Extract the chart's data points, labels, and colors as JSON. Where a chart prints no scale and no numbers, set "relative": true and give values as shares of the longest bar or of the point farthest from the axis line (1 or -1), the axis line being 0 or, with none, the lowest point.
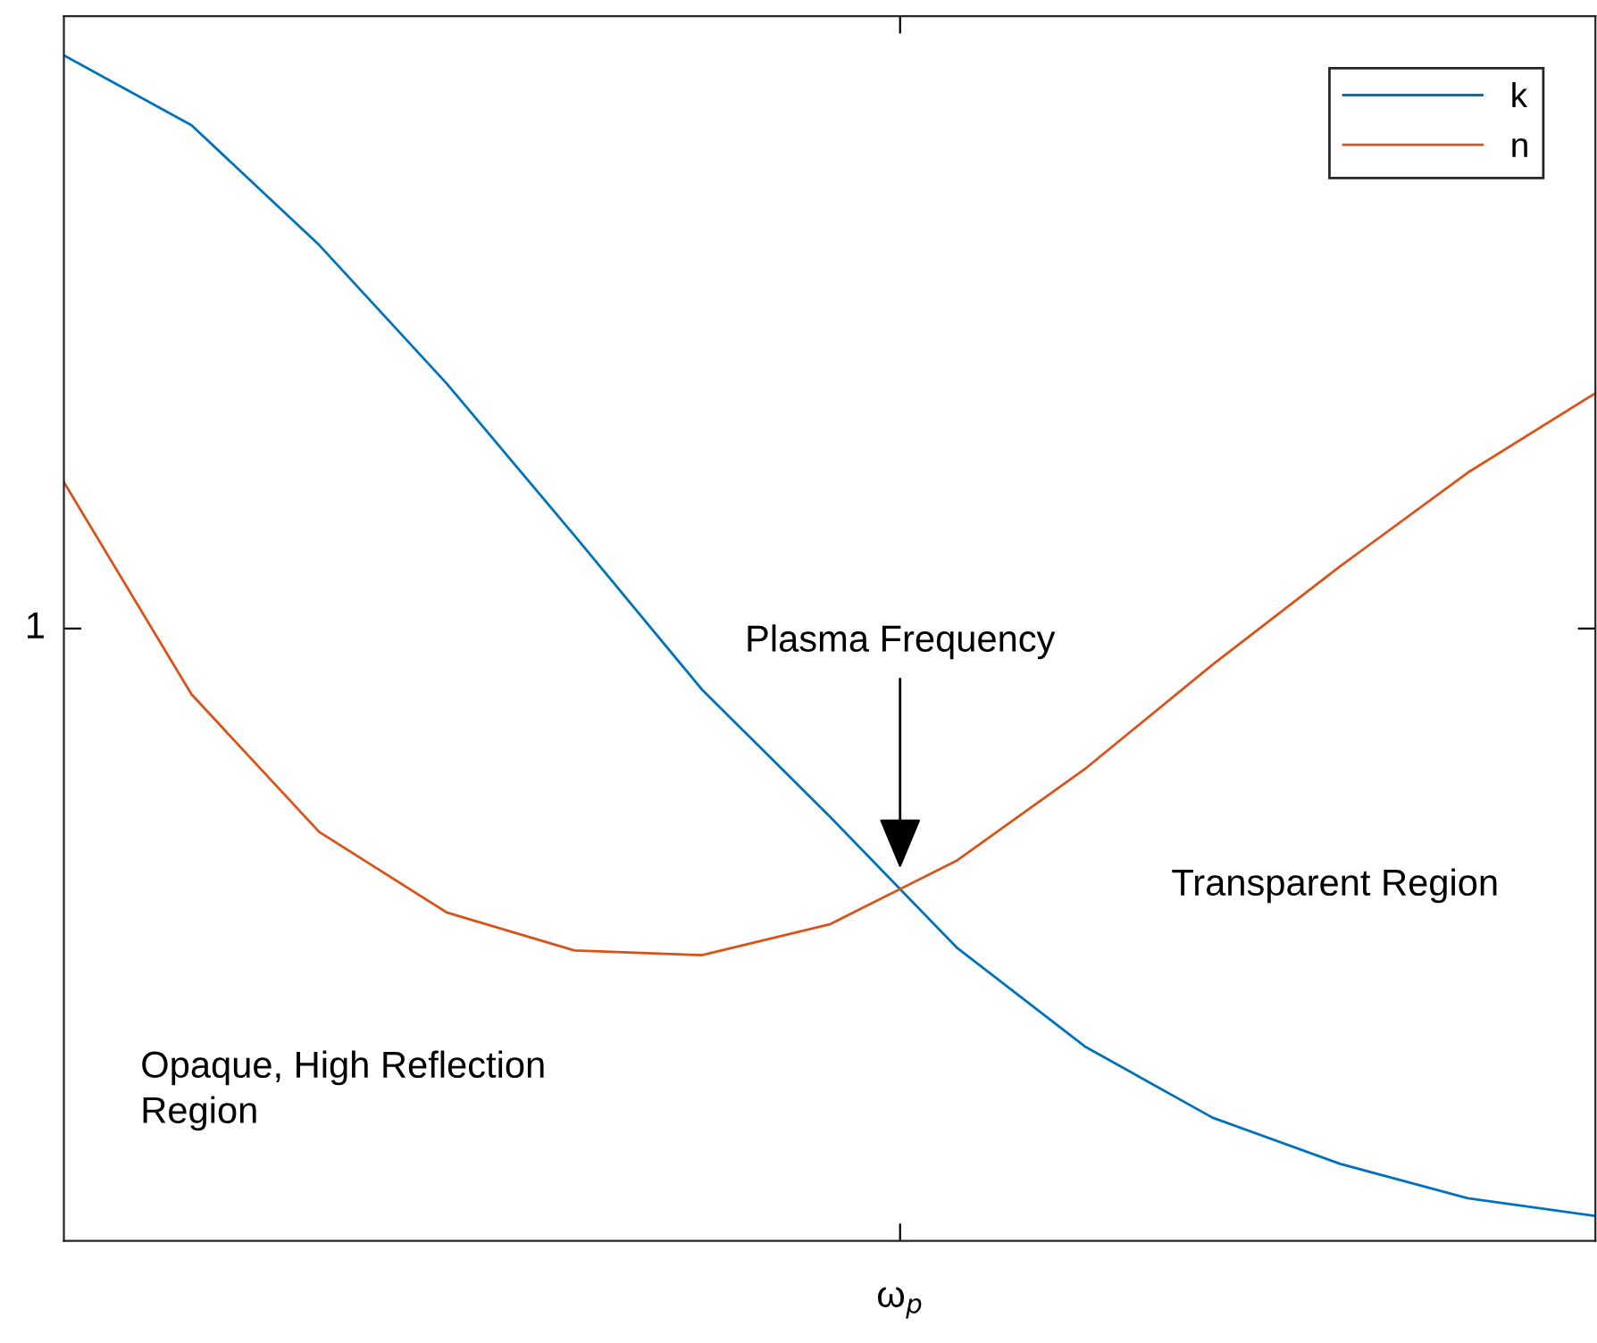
{
  "chart_data": {
    "type": "line",
    "relative": true,
    "categories": [
      null,
      null,
      null,
      null,
      null,
      null,
      null,
      null,
      null,
      null,
      null,
      null,
      null
    ],
    "series": [
      {
        "name": "k",
        "color": "#0072bd",
        "values": [
          1.0,
          0.941,
          0.84,
          0.723,
          0.595,
          0.465,
          0.358,
          0.247,
          0.164,
          0.104,
          0.065,
          0.036,
          0.021
        ]
      },
      {
        "name": "n",
        "color": "#d95319",
        "values": [
          0.64,
          0.461,
          0.345,
          0.277,
          0.245,
          0.241,
          0.267,
          0.321,
          0.398,
          0.486,
          0.569,
          0.648,
          0.715
        ]
      }
    ],
    "annotations": [
      "Plasma Frequency",
      "Transparent Region",
      "Opaque, High Reflection\nRegion",
      "ω$_{p}$",
      "1"
    ],
    "legend": "top right",
    "grid": false,
    "marker": "none",
    "line_style": "solid"
  }
}
